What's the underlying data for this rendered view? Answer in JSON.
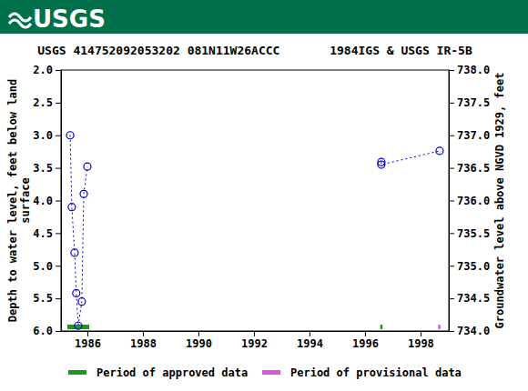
{
  "header": {
    "logo": "USGS"
  },
  "chart_data": {
    "type": "scatter",
    "title": "USGS 414752092053202 081N11W26ACCC       1984IGS & USGS IR-5B",
    "ylabel": [
      "Depth to water level, feet below land",
      "surface"
    ],
    "y2label": "Groundwater level above NGVD 1929, feet",
    "xlim": [
      1985.05,
      1999.02
    ],
    "xticks": [
      1986,
      1988,
      1990,
      1992,
      1994,
      1996,
      1998
    ],
    "ylim": [
      2.0,
      6.0
    ],
    "yticks": [
      {
        "value": 2,
        "label": "2.0"
      },
      {
        "value": 2.5,
        "label": "2.5"
      },
      {
        "value": 3,
        "label": "3.0"
      },
      {
        "value": 3.5,
        "label": "3.5"
      },
      {
        "value": 4,
        "label": "4.0"
      },
      {
        "value": 4.5,
        "label": "4.5"
      },
      {
        "value": 5,
        "label": "5.0"
      },
      {
        "value": 5.5,
        "label": "5.5"
      },
      {
        "value": 6,
        "label": "6.0"
      }
    ],
    "y2lim": [
      738.0,
      734.0
    ],
    "y2ticks": [
      {
        "value": 738,
        "label": "738.0"
      },
      {
        "value": 737.5,
        "label": "737.5"
      },
      {
        "value": 737,
        "label": "737.0"
      },
      {
        "value": 736.5,
        "label": "736.5"
      },
      {
        "value": 736,
        "label": "736.0"
      },
      {
        "value": 735.5,
        "label": "735.5"
      },
      {
        "value": 735,
        "label": "735.0"
      },
      {
        "value": 734.5,
        "label": "734.5"
      },
      {
        "value": 734,
        "label": "734.0"
      }
    ],
    "grid": false,
    "series": [
      {
        "color": "#0000cc",
        "marker": "circle",
        "line_style": "dotted",
        "x": [
          1985.38,
          1985.44,
          1985.54,
          1985.6,
          1985.67,
          1985.8,
          1985.87,
          1986.0,
          null,
          1996.59,
          1996.59,
          1998.69
        ],
        "values": [
          3.0,
          4.1,
          4.8,
          5.42,
          5.92,
          5.55,
          3.9,
          3.48,
          null,
          3.41,
          3.45,
          3.24
        ]
      }
    ],
    "periods": [
      {
        "name": "Period of approved data",
        "color": "#1a9a1a",
        "ranges": [
          [
            1985.28,
            1986.07
          ],
          [
            1996.55,
            1996.63
          ]
        ]
      },
      {
        "name": "Period of provisional data",
        "color": "#dd55dd",
        "ranges": [
          [
            1998.64,
            1998.72
          ]
        ]
      }
    ]
  }
}
